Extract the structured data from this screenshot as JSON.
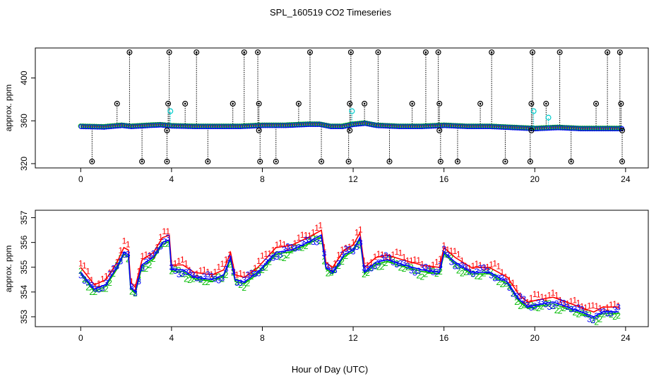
{
  "title": "SPL_160519  CO2 Timeseries",
  "xlabel": "Hour of Day (UTC)",
  "colors": {
    "black": "#000000",
    "red": "#ff0000",
    "green": "#00bb00",
    "blue": "#0000ff",
    "cyan": "#00cccc"
  },
  "chart_data": [
    {
      "type": "scatter",
      "panel": "top",
      "title": "",
      "xlabel": "",
      "ylabel": "approx. ppm",
      "xlim": [
        -2,
        25
      ],
      "ylim": [
        316,
        428
      ],
      "xticks": [
        0,
        4,
        8,
        12,
        16,
        20,
        24
      ],
      "yticks": [
        320,
        360,
        400
      ],
      "grid": false,
      "legend": "none",
      "baseline": [
        [
          0,
          355
        ],
        [
          1,
          354.5
        ],
        [
          1.8,
          356
        ],
        [
          2.2,
          355
        ],
        [
          3,
          356
        ],
        [
          3.5,
          356.5
        ],
        [
          4,
          355.5
        ],
        [
          5,
          355
        ],
        [
          6,
          355
        ],
        [
          7,
          355
        ],
        [
          8,
          356
        ],
        [
          9,
          356
        ],
        [
          10,
          357
        ],
        [
          10.5,
          357
        ],
        [
          11,
          355
        ],
        [
          11.5,
          355
        ],
        [
          12,
          357
        ],
        [
          12.5,
          358
        ],
        [
          13,
          356
        ],
        [
          14,
          355
        ],
        [
          15,
          355
        ],
        [
          16,
          356
        ],
        [
          17,
          355
        ],
        [
          18,
          355
        ],
        [
          19,
          354
        ],
        [
          20,
          353
        ],
        [
          21,
          354
        ],
        [
          22,
          353
        ],
        [
          23,
          353
        ],
        [
          23.9,
          353
        ]
      ],
      "spikes": [
        {
          "x": 0.5,
          "y": 322
        },
        {
          "x": 1.6,
          "y": 376
        },
        {
          "x": 2.15,
          "y": 424
        },
        {
          "x": 2.7,
          "y": 322
        },
        {
          "x": 3.8,
          "y": 322
        },
        {
          "x": 3.85,
          "y": 376
        },
        {
          "x": 3.9,
          "y": 424
        },
        {
          "x": 3.8,
          "y": 351
        },
        {
          "x": 4.6,
          "y": 376
        },
        {
          "x": 5.1,
          "y": 424
        },
        {
          "x": 5.6,
          "y": 322
        },
        {
          "x": 6.7,
          "y": 376
        },
        {
          "x": 7.2,
          "y": 424
        },
        {
          "x": 7.8,
          "y": 424
        },
        {
          "x": 7.85,
          "y": 376
        },
        {
          "x": 7.9,
          "y": 322
        },
        {
          "x": 7.85,
          "y": 351
        },
        {
          "x": 8.6,
          "y": 322
        },
        {
          "x": 9.6,
          "y": 376
        },
        {
          "x": 10.1,
          "y": 424
        },
        {
          "x": 10.6,
          "y": 322
        },
        {
          "x": 11.8,
          "y": 322
        },
        {
          "x": 11.85,
          "y": 376
        },
        {
          "x": 11.9,
          "y": 424
        },
        {
          "x": 11.85,
          "y": 351
        },
        {
          "x": 12.5,
          "y": 376
        },
        {
          "x": 13.1,
          "y": 424
        },
        {
          "x": 13.6,
          "y": 322
        },
        {
          "x": 14.6,
          "y": 376
        },
        {
          "x": 15.2,
          "y": 424
        },
        {
          "x": 15.75,
          "y": 424
        },
        {
          "x": 15.8,
          "y": 376
        },
        {
          "x": 15.85,
          "y": 322
        },
        {
          "x": 15.8,
          "y": 351
        },
        {
          "x": 16.6,
          "y": 322
        },
        {
          "x": 17.6,
          "y": 376
        },
        {
          "x": 18.1,
          "y": 424
        },
        {
          "x": 18.7,
          "y": 322
        },
        {
          "x": 19.8,
          "y": 322
        },
        {
          "x": 19.85,
          "y": 376
        },
        {
          "x": 19.9,
          "y": 424
        },
        {
          "x": 19.85,
          "y": 351
        },
        {
          "x": 20.5,
          "y": 376
        },
        {
          "x": 21.1,
          "y": 424
        },
        {
          "x": 21.6,
          "y": 322
        },
        {
          "x": 22.7,
          "y": 376
        },
        {
          "x": 23.2,
          "y": 424
        },
        {
          "x": 23.75,
          "y": 424
        },
        {
          "x": 23.8,
          "y": 376
        },
        {
          "x": 23.85,
          "y": 322
        },
        {
          "x": 23.85,
          "y": 351
        }
      ],
      "cyan_points": [
        {
          "x": 3.95,
          "y": 369
        },
        {
          "x": 11.95,
          "y": 369
        },
        {
          "x": 19.95,
          "y": 369
        },
        {
          "x": 20.6,
          "y": 363
        }
      ]
    },
    {
      "type": "line",
      "panel": "bottom",
      "title": "",
      "xlabel": "",
      "ylabel": "approx. ppm",
      "xlim": [
        -2,
        25
      ],
      "ylim": [
        352.6,
        357.3
      ],
      "xticks": [
        0,
        4,
        8,
        12,
        16,
        20,
        24
      ],
      "yticks": [
        353,
        354,
        355,
        356,
        357
      ],
      "grid": false,
      "legend": "none",
      "series": [
        {
          "marker": "1",
          "color": "#ff0000",
          "offset": 0.55,
          "values": [
            [
              0,
              354.8
            ],
            [
              0.6,
              354.1
            ],
            [
              1.1,
              354.3
            ],
            [
              1.6,
              355.0
            ],
            [
              1.9,
              355.6
            ],
            [
              2.1,
              355.5
            ],
            [
              2.2,
              354.2
            ],
            [
              2.4,
              354.0
            ],
            [
              2.7,
              355.1
            ],
            [
              3.2,
              355.4
            ],
            [
              3.6,
              356.0
            ],
            [
              3.9,
              356.1
            ],
            [
              4.0,
              354.9
            ],
            [
              4.5,
              354.9
            ],
            [
              5.0,
              354.6
            ],
            [
              5.8,
              354.5
            ],
            [
              6.3,
              354.7
            ],
            [
              6.6,
              355.4
            ],
            [
              6.8,
              354.5
            ],
            [
              7.2,
              354.4
            ],
            [
              7.8,
              354.8
            ],
            [
              8.1,
              355.1
            ],
            [
              8.6,
              355.6
            ],
            [
              9.3,
              355.7
            ],
            [
              10.0,
              356.0
            ],
            [
              10.6,
              356.3
            ],
            [
              10.8,
              355.0
            ],
            [
              11.1,
              354.8
            ],
            [
              11.6,
              355.5
            ],
            [
              12.0,
              355.7
            ],
            [
              12.3,
              356.2
            ],
            [
              12.5,
              354.8
            ],
            [
              13.0,
              355.2
            ],
            [
              13.5,
              355.3
            ],
            [
              14.2,
              355.1
            ],
            [
              15.0,
              354.9
            ],
            [
              15.8,
              354.8
            ],
            [
              16.0,
              355.6
            ],
            [
              16.5,
              355.2
            ],
            [
              17.2,
              354.8
            ],
            [
              18.0,
              354.8
            ],
            [
              18.8,
              354.4
            ],
            [
              19.3,
              353.7
            ],
            [
              19.7,
              353.4
            ],
            [
              20.2,
              353.5
            ],
            [
              20.8,
              353.6
            ],
            [
              21.4,
              353.4
            ],
            [
              22.0,
              353.2
            ],
            [
              22.6,
              353.0
            ],
            [
              23.0,
              353.2
            ],
            [
              23.7,
              353.2
            ]
          ]
        },
        {
          "marker": "2",
          "color": "#00bb00",
          "offset": -0.2,
          "values": [
            [
              0,
              354.8
            ],
            [
              0.6,
              354.1
            ],
            [
              1.1,
              354.3
            ],
            [
              1.6,
              355.0
            ],
            [
              1.9,
              355.6
            ],
            [
              2.1,
              355.5
            ],
            [
              2.2,
              354.2
            ],
            [
              2.4,
              354.0
            ],
            [
              2.7,
              355.1
            ],
            [
              3.2,
              355.4
            ],
            [
              3.6,
              356.0
            ],
            [
              3.9,
              356.1
            ],
            [
              4.0,
              354.9
            ],
            [
              4.5,
              354.9
            ],
            [
              5.0,
              354.6
            ],
            [
              5.8,
              354.5
            ],
            [
              6.3,
              354.7
            ],
            [
              6.6,
              355.4
            ],
            [
              6.8,
              354.5
            ],
            [
              7.2,
              354.4
            ],
            [
              7.8,
              354.8
            ],
            [
              8.1,
              355.1
            ],
            [
              8.6,
              355.6
            ],
            [
              9.3,
              355.7
            ],
            [
              10.0,
              356.0
            ],
            [
              10.6,
              356.3
            ],
            [
              10.8,
              355.0
            ],
            [
              11.1,
              354.8
            ],
            [
              11.6,
              355.5
            ],
            [
              12.0,
              355.7
            ],
            [
              12.3,
              356.2
            ],
            [
              12.5,
              354.8
            ],
            [
              13.0,
              355.2
            ],
            [
              13.5,
              355.3
            ],
            [
              14.2,
              355.1
            ],
            [
              15.0,
              354.9
            ],
            [
              15.8,
              354.8
            ],
            [
              16.0,
              355.6
            ],
            [
              16.5,
              355.2
            ],
            [
              17.2,
              354.8
            ],
            [
              18.0,
              354.8
            ],
            [
              18.8,
              354.4
            ],
            [
              19.3,
              353.7
            ],
            [
              19.7,
              353.4
            ],
            [
              20.2,
              353.5
            ],
            [
              20.8,
              353.6
            ],
            [
              21.4,
              353.4
            ],
            [
              22.0,
              353.2
            ],
            [
              22.6,
              353.0
            ],
            [
              23.0,
              353.2
            ],
            [
              23.7,
              353.2
            ]
          ]
        },
        {
          "marker": "3",
          "color": "#0000ff",
          "offset": 0.0,
          "values": [
            [
              0,
              354.8
            ],
            [
              0.6,
              354.1
            ],
            [
              1.1,
              354.3
            ],
            [
              1.6,
              355.0
            ],
            [
              1.9,
              355.6
            ],
            [
              2.1,
              355.5
            ],
            [
              2.2,
              354.2
            ],
            [
              2.4,
              354.0
            ],
            [
              2.7,
              355.1
            ],
            [
              3.2,
              355.4
            ],
            [
              3.6,
              356.0
            ],
            [
              3.9,
              356.1
            ],
            [
              4.0,
              354.9
            ],
            [
              4.5,
              354.9
            ],
            [
              5.0,
              354.6
            ],
            [
              5.8,
              354.5
            ],
            [
              6.3,
              354.7
            ],
            [
              6.6,
              355.4
            ],
            [
              6.8,
              354.5
            ],
            [
              7.2,
              354.4
            ],
            [
              7.8,
              354.8
            ],
            [
              8.1,
              355.1
            ],
            [
              8.6,
              355.6
            ],
            [
              9.3,
              355.7
            ],
            [
              10.0,
              356.0
            ],
            [
              10.6,
              356.3
            ],
            [
              10.8,
              355.0
            ],
            [
              11.1,
              354.8
            ],
            [
              11.6,
              355.5
            ],
            [
              12.0,
              355.7
            ],
            [
              12.3,
              356.2
            ],
            [
              12.5,
              354.8
            ],
            [
              13.0,
              355.2
            ],
            [
              13.5,
              355.3
            ],
            [
              14.2,
              355.1
            ],
            [
              15.0,
              354.9
            ],
            [
              15.8,
              354.8
            ],
            [
              16.0,
              355.6
            ],
            [
              16.5,
              355.2
            ],
            [
              17.2,
              354.8
            ],
            [
              18.0,
              354.8
            ],
            [
              18.8,
              354.4
            ],
            [
              19.3,
              353.7
            ],
            [
              19.7,
              353.4
            ],
            [
              20.2,
              353.5
            ],
            [
              20.8,
              353.6
            ],
            [
              21.4,
              353.4
            ],
            [
              22.0,
              353.2
            ],
            [
              22.6,
              353.0
            ],
            [
              23.0,
              353.2
            ],
            [
              23.7,
              353.2
            ]
          ]
        }
      ]
    }
  ]
}
